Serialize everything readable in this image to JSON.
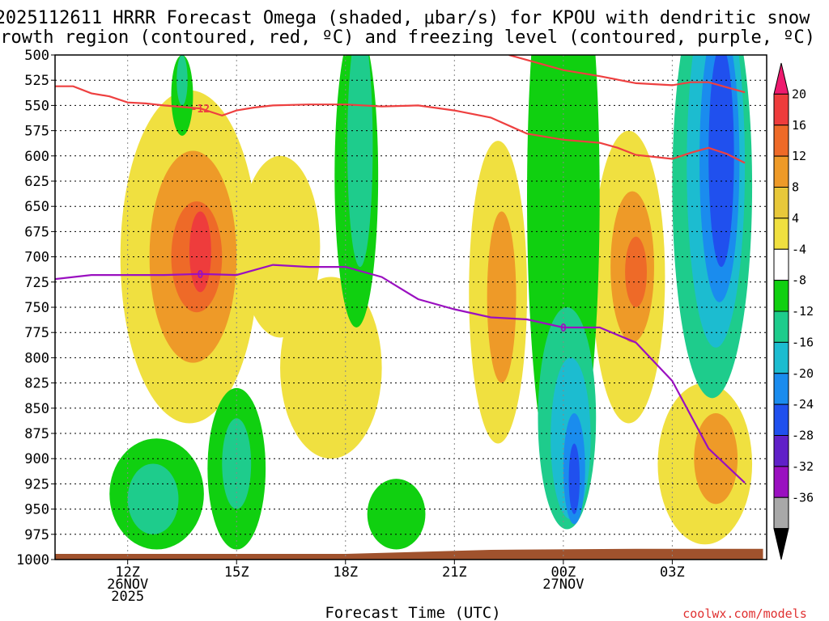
{
  "chart_data": {
    "type": "heatmap",
    "title_line1": "2025112611 HRRR Forecast Omega (shaded, μbar/s) for KPOU with dendritic snow",
    "title_line2": "growth region (contoured, red, ºC) and freezing level (contoured, purple, ºC)",
    "xlabel": "Forecast Time (UTC)",
    "ylabel": "",
    "x_range_hours": [
      10,
      16
    ],
    "y_ticks": [
      500,
      525,
      550,
      575,
      600,
      625,
      650,
      675,
      700,
      725,
      750,
      775,
      800,
      825,
      850,
      875,
      900,
      925,
      950,
      975,
      1000
    ],
    "x_ticks": [
      {
        "hour": 12,
        "line1": "12Z",
        "line2": "26NOV",
        "line3": "2025"
      },
      {
        "hour": 15,
        "line1": "15Z",
        "line2": "",
        "line3": ""
      },
      {
        "hour": 18,
        "line1": "18Z",
        "line2": "",
        "line3": ""
      },
      {
        "hour": 21,
        "line1": "21Z",
        "line2": "",
        "line3": ""
      },
      {
        "hour": 24,
        "line1": "00Z",
        "line2": "27NOV",
        "line3": ""
      },
      {
        "hour": 27,
        "line1": "03Z",
        "line2": "",
        "line3": ""
      }
    ],
    "colorbar": {
      "labels": [
        "20",
        "16",
        "12",
        "8",
        "4",
        "-4",
        "-8",
        "-12",
        "-16",
        "-20",
        "-24",
        "-28",
        "-32",
        "-36"
      ],
      "colors": [
        "#ee1a6e",
        "#ee3c3c",
        "#ee6a28",
        "#ee9a28",
        "#e8c83a",
        "#f0e040",
        "#ffffff",
        "#10d010",
        "#1ecc8c",
        "#1cbcd0",
        "#1a8cee",
        "#2050ee",
        "#6020c8",
        "#9a10c0",
        "#a8a8a8",
        "#000000"
      ]
    },
    "contours": {
      "dgz_minus12": {
        "name": "-12 °C",
        "label": "-12",
        "color": "#ee4040",
        "points": [
          [
            9.5,
            531
          ],
          [
            10.5,
            531
          ],
          [
            11,
            538
          ],
          [
            11.5,
            541
          ],
          [
            12,
            547
          ],
          [
            12.5,
            548
          ],
          [
            13,
            550
          ],
          [
            14,
            553
          ],
          [
            14.6,
            560
          ],
          [
            15,
            555
          ],
          [
            15.5,
            552
          ],
          [
            16,
            550
          ],
          [
            17,
            549
          ],
          [
            18,
            549
          ],
          [
            19,
            551
          ],
          [
            20,
            550
          ],
          [
            21,
            555
          ],
          [
            22,
            562
          ],
          [
            23,
            578
          ],
          [
            24,
            584
          ],
          [
            25,
            587
          ],
          [
            25.5,
            592
          ],
          [
            26,
            599
          ],
          [
            26.5,
            601
          ],
          [
            27,
            603
          ],
          [
            27.5,
            597
          ],
          [
            28,
            592
          ],
          [
            28.5,
            598
          ],
          [
            29,
            607
          ]
        ]
      },
      "dgz_upper": {
        "name": "-12 °C (upper)",
        "label": "",
        "color": "#ee4040",
        "points": [
          [
            22.5,
            500
          ],
          [
            23,
            505
          ],
          [
            24,
            515
          ],
          [
            25,
            521
          ],
          [
            26,
            528
          ],
          [
            27,
            530
          ],
          [
            27.5,
            527
          ],
          [
            28,
            527
          ],
          [
            28.5,
            532
          ],
          [
            29,
            537
          ]
        ]
      },
      "freezing_level": {
        "name": "0 °C",
        "label": "0",
        "color": "#9a10c0",
        "points": [
          [
            9.5,
            724
          ],
          [
            10,
            722
          ],
          [
            11,
            718
          ],
          [
            12,
            718
          ],
          [
            13,
            718
          ],
          [
            14,
            717
          ],
          [
            15,
            718
          ],
          [
            16,
            708
          ],
          [
            17,
            710
          ],
          [
            18,
            710
          ],
          [
            19,
            720
          ],
          [
            20,
            742
          ],
          [
            21,
            752
          ],
          [
            22,
            760
          ],
          [
            23,
            762
          ],
          [
            24,
            770
          ],
          [
            25,
            770
          ],
          [
            26,
            785
          ],
          [
            27,
            823
          ],
          [
            28,
            890
          ],
          [
            29,
            924
          ]
        ]
      }
    },
    "omega_shading": [
      {
        "t": 13.7,
        "p": 700,
        "rx": 1.9,
        "ry": 165,
        "value": 6
      },
      {
        "t": 13.8,
        "p": 700,
        "rx": 1.2,
        "ry": 105,
        "value": 10
      },
      {
        "t": 13.9,
        "p": 700,
        "rx": 0.7,
        "ry": 55,
        "value": 14
      },
      {
        "t": 14.0,
        "p": 695,
        "rx": 0.3,
        "ry": 40,
        "value": 18
      },
      {
        "t": 16.2,
        "p": 690,
        "rx": 1.1,
        "ry": 90,
        "value": 6
      },
      {
        "t": 17.6,
        "p": 810,
        "rx": 1.4,
        "ry": 90,
        "value": 6
      },
      {
        "t": 22.2,
        "p": 735,
        "rx": 0.8,
        "ry": 150,
        "value": 6
      },
      {
        "t": 22.3,
        "p": 740,
        "rx": 0.4,
        "ry": 85,
        "value": 10
      },
      {
        "t": 25.8,
        "p": 720,
        "rx": 1.0,
        "ry": 145,
        "value": 6
      },
      {
        "t": 25.9,
        "p": 710,
        "rx": 0.6,
        "ry": 75,
        "value": 10
      },
      {
        "t": 26.0,
        "p": 715,
        "rx": 0.3,
        "ry": 35,
        "value": 14
      },
      {
        "t": 27.9,
        "p": 905,
        "rx": 1.3,
        "ry": 80,
        "value": 6
      },
      {
        "t": 28.2,
        "p": 900,
        "rx": 0.6,
        "ry": 45,
        "value": 10
      },
      {
        "t": 12.8,
        "p": 935,
        "rx": 1.3,
        "ry": 55,
        "value": -6
      },
      {
        "t": 12.7,
        "p": 940,
        "rx": 0.7,
        "ry": 35,
        "value": -10
      },
      {
        "t": 15.0,
        "p": 910,
        "rx": 0.8,
        "ry": 80,
        "value": -6
      },
      {
        "t": 15.0,
        "p": 905,
        "rx": 0.4,
        "ry": 45,
        "value": -10
      },
      {
        "t": 18.3,
        "p": 620,
        "rx": 0.6,
        "ry": 150,
        "value": -6
      },
      {
        "t": 18.4,
        "p": 590,
        "rx": 0.35,
        "ry": 120,
        "value": -10
      },
      {
        "t": 19.4,
        "p": 955,
        "rx": 0.8,
        "ry": 35,
        "value": -6
      },
      {
        "t": 24.0,
        "p": 640,
        "rx": 1.0,
        "ry": 300,
        "value": -6
      },
      {
        "t": 24.1,
        "p": 860,
        "rx": 0.8,
        "ry": 110,
        "value": -10
      },
      {
        "t": 24.2,
        "p": 880,
        "rx": 0.55,
        "ry": 80,
        "value": -14
      },
      {
        "t": 24.3,
        "p": 910,
        "rx": 0.3,
        "ry": 55,
        "value": -18
      },
      {
        "t": 24.3,
        "p": 920,
        "rx": 0.15,
        "ry": 35,
        "value": -22
      },
      {
        "t": 28.1,
        "p": 630,
        "rx": 1.1,
        "ry": 210,
        "value": -10
      },
      {
        "t": 28.2,
        "p": 610,
        "rx": 0.8,
        "ry": 180,
        "value": -14
      },
      {
        "t": 28.3,
        "p": 605,
        "rx": 0.55,
        "ry": 140,
        "value": -18
      },
      {
        "t": 28.35,
        "p": 600,
        "rx": 0.35,
        "ry": 110,
        "value": -22
      },
      {
        "t": 13.5,
        "p": 540,
        "rx": 0.3,
        "ry": 40,
        "value": -6
      },
      {
        "t": 13.5,
        "p": 525,
        "rx": 0.15,
        "ry": 25,
        "value": -10
      }
    ],
    "terrain_surface": [
      [
        9.5,
        1000
      ],
      [
        18,
        1000
      ],
      [
        22,
        996
      ],
      [
        26,
        995
      ],
      [
        29.5,
        995
      ]
    ]
  },
  "credit": "coolwx.com/models"
}
